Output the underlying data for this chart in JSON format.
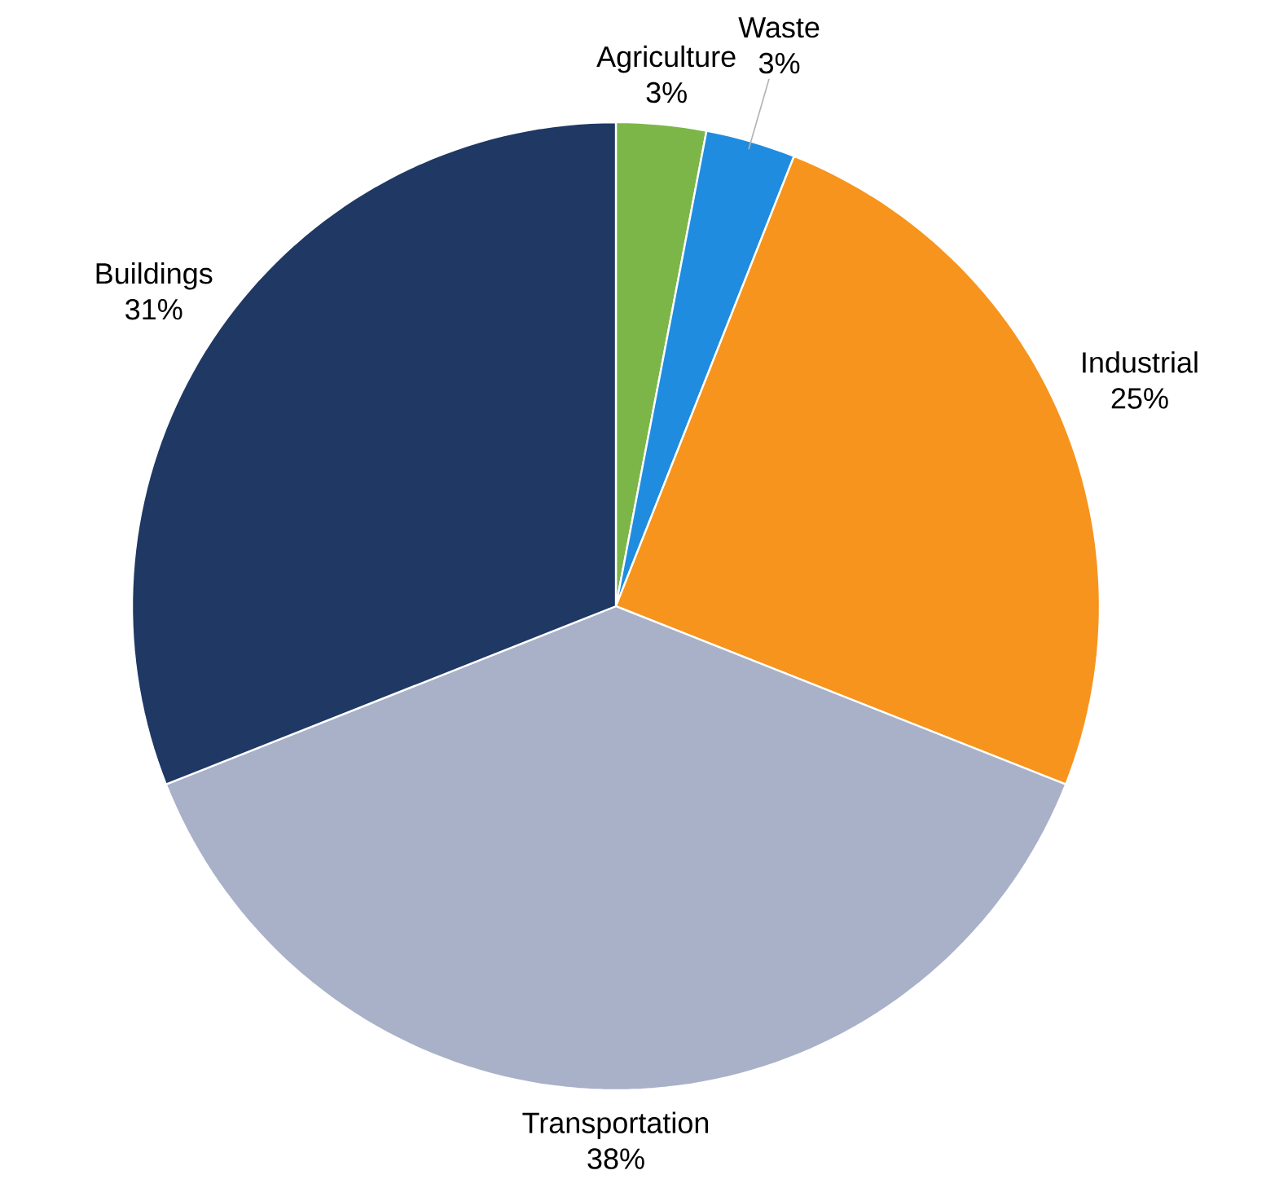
{
  "chart_data": {
    "type": "pie",
    "categories": [
      "Agriculture",
      "Waste",
      "Industrial",
      "Transportation",
      "Buildings"
    ],
    "values": [
      3,
      3,
      25,
      38,
      31
    ],
    "colors": [
      "#7cb648",
      "#1f8ce0",
      "#f7941d",
      "#a9b1c9",
      "#1f3864"
    ],
    "value_labels": [
      "3%",
      "3%",
      "25%",
      "38%",
      "31%"
    ]
  }
}
